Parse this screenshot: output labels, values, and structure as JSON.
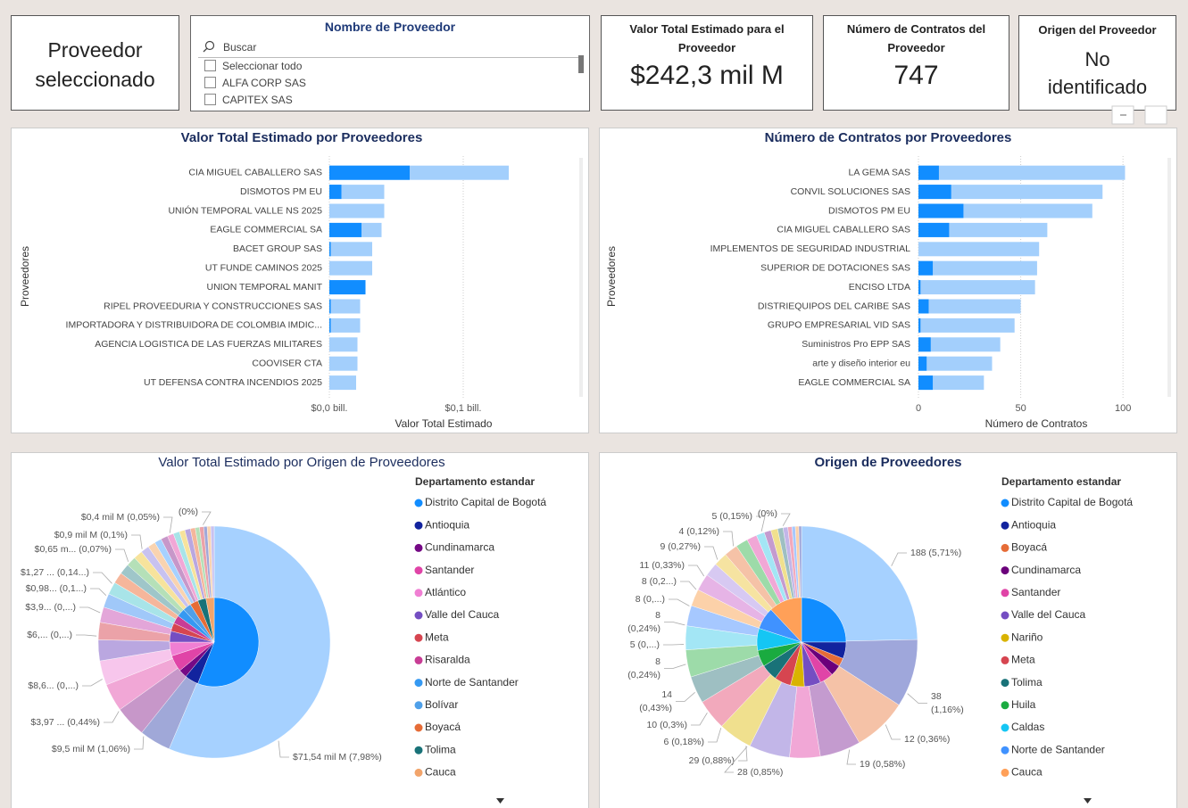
{
  "selected_card": "Proveedor seleccionado",
  "slicer": {
    "title": "Nombre de Proveedor",
    "search": "Buscar",
    "items": [
      "Seleccionar todo",
      "ALFA CORP SAS",
      "CAPITEX SAS"
    ]
  },
  "cards": [
    {
      "title": "Valor Total Estimado para el Proveedor",
      "value": "$242,3 mil M"
    },
    {
      "title": "Número de Contratos del Proveedor",
      "value": 747
    },
    {
      "title": "Origen del Proveedor",
      "value": "No identificado"
    }
  ],
  "chart_data": [
    {
      "type": "bar",
      "title": "Valor Total Estimado por Proveedores",
      "x_label": "Valor Total Estimado",
      "y_label": "Proveedores",
      "categories": [
        "CIA MIGUEL CABALLERO SAS",
        "DISMOTOS PM EU",
        "UNIÓN TEMPORAL VALLE NS 2025",
        "EAGLE COMMERCIAL SA",
        "BACET GROUP SAS",
        "UT FUNDE CAMINOS 2025",
        "UNION TEMPORAL MANIT",
        "RIPEL PROVEEDURIA Y CONSTRUCCIONES SAS",
        "IMPORTADORA Y DISTRIBUIDORA DE COLOMBIA IMDIC...",
        "AGENCIA LOGISTICA DE LAS FUERZAS MILITARES",
        "COOVISER CTA",
        "UT DEFENSA CONTRA INCENDIOS 2025"
      ],
      "series": [
        {
          "color": "#A3CFFC",
          "values": [
            0.134,
            0.041,
            0.041,
            0.039,
            0.032,
            0.032,
            0.027,
            0.023,
            0.023,
            0.021,
            0.021,
            0.02
          ]
        },
        {
          "color": "#118DFF",
          "values": [
            0.06,
            0.009,
            0,
            0.024,
            0.001,
            0,
            0.027,
            0.001,
            0.001,
            0,
            0,
            0
          ]
        }
      ],
      "xlim": [
        0,
        0.18
      ],
      "xticks": [
        {
          "value": 0,
          "label": "$0,0 bill."
        },
        {
          "value": 0.1,
          "label": "$0,1 bill."
        }
      ],
      "grid": true
    },
    {
      "type": "bar",
      "title": "Número de Contratos por Proveedores",
      "x_label": "Número de Contratos",
      "y_label": "Proveedores",
      "categories": [
        "LA GEMA SAS",
        "CONVIL SOLUCIONES SAS",
        "DISMOTOS PM EU",
        "CIA MIGUEL CABALLERO SAS",
        "IMPLEMENTOS DE SEGURIDAD INDUSTRIAL",
        "SUPERIOR DE DOTACIONES SAS",
        "ENCISO LTDA",
        "DISTRIEQUIPOS DEL CARIBE SAS",
        "GRUPO EMPRESARIAL VID SAS",
        "Suministros Pro EPP SAS",
        "arte y diseño interior eu",
        "EAGLE COMMERCIAL SA"
      ],
      "series": [
        {
          "color": "#A3CFFC",
          "values": [
            101,
            90,
            85,
            63,
            59,
            58,
            57,
            50,
            47,
            40,
            36,
            32
          ]
        },
        {
          "color": "#118DFF",
          "values": [
            10,
            16,
            22,
            15,
            0,
            7,
            1,
            5,
            1,
            6,
            4,
            7
          ]
        }
      ],
      "xlim": [
        0,
        120
      ],
      "xticks": [
        0,
        50,
        100
      ],
      "grid": true
    },
    {
      "type": "pie",
      "title": "Valor Total Estimado por Origen de Proveedores",
      "legend_title": "Departamento estandar",
      "categories": [
        "Distrito Capital de Bogotá",
        "Antioquia",
        "Cundinamarca",
        "Santander",
        "Atlántico",
        "Valle del Cauca",
        "Meta",
        "Risaralda",
        "Norte de Santander",
        "Bolívar",
        "Boyacá",
        "Tolima",
        "Cauca"
      ],
      "values": [
        56,
        5,
        3,
        6,
        5,
        4,
        3,
        3,
        3,
        3,
        3,
        3,
        3
      ],
      "colors": [
        "#118DFF",
        "#12239E",
        "#750985",
        "#E044A7",
        "#F07FD3",
        "#744EC2",
        "#D64550",
        "#C83D95",
        "#3599F2",
        "#4FA0E9",
        "#E66C37",
        "#197278",
        "#F2A46B"
      ],
      "ring": {
        "values": [
          58,
          4.5,
          4.5,
          4,
          3.5,
          3,
          2.5,
          2.2,
          2,
          1.8,
          1.6,
          1.5,
          1.4,
          1.3,
          1.2,
          1.1,
          1,
          1,
          0.9,
          0.9,
          0.8,
          0.8,
          0.7,
          0.6,
          0.6,
          0.5,
          0.5,
          0.5
        ],
        "colors": [
          "#A6D1FF",
          "#A0A8D8",
          "#C797C9",
          "#F1A7D6",
          "#F7C6EC",
          "#BAA7E0",
          "#EBA2A8",
          "#E3A6D9",
          "#A0C8F9",
          "#A8E4E8",
          "#F5B69B",
          "#9FC6C9",
          "#B5E0B8",
          "#F7E39C",
          "#C8C2F0",
          "#F9D3B0",
          "#A6D1FF",
          "#C797C9",
          "#F1A7D6",
          "#A8E4E8",
          "#F7E39C",
          "#BAA7E0",
          "#F5B69B",
          "#B5E0B8",
          "#EBA2A8",
          "#A0A8D8",
          "#F9D3B0",
          "#C8C2F0"
        ]
      },
      "labels": [
        [
          "$0,4 mil M (0,05%)"
        ],
        [
          "(0%)"
        ],
        [
          "$0,9 mil M (0,1%)"
        ],
        [
          "$0,65 m... (0,07%)"
        ],
        [
          "$1,27 ... (0,14...)"
        ],
        [
          "$0,98... (0,1...)"
        ],
        [
          "$3,9... (0,...)"
        ],
        [
          "$6,... (0,...)"
        ],
        [
          "$8,6... (0,...)"
        ],
        [
          "$3,97 ... (0,44%)"
        ],
        [
          "$9,5 mil M (1,06%)"
        ],
        [
          "$71,54 mil M (7,98%)"
        ]
      ]
    },
    {
      "type": "pie",
      "title": "Origen de Proveedores",
      "legend_title": "Departamento estandar",
      "categories": [
        "Distrito Capital de Bogotá",
        "Antioquia",
        "Boyacá",
        "Cundinamarca",
        "Santander",
        "Valle del Cauca",
        "Nariño",
        "Meta",
        "Tolima",
        "Huila",
        "Caldas",
        "Norte de Santander",
        "Cauca"
      ],
      "values": [
        25,
        6,
        3,
        4,
        5,
        6,
        5,
        6,
        6,
        6,
        8,
        8,
        12
      ],
      "colors": [
        "#118DFF",
        "#12239E",
        "#E66C37",
        "#6B007B",
        "#E044A7",
        "#744EC2",
        "#D9B300",
        "#D64550",
        "#197278",
        "#1AAB40",
        "#15C6F4",
        "#4092FF",
        "#FFA058"
      ],
      "ring": {
        "values": [
          26,
          10,
          8,
          6,
          4.5,
          6,
          5,
          4.5,
          4,
          4,
          3.5,
          3,
          2.5,
          2.5,
          2,
          2,
          2,
          1.8,
          1.5,
          1.2,
          1,
          1,
          0.8,
          0.7,
          0.6,
          0.5,
          0.5,
          0.4
        ],
        "colors": [
          "#A6D1FF",
          "#9FA7DB",
          "#F5C2A7",
          "#C49BCF",
          "#F1A7D6",
          "#C2B6E8",
          "#F0E08E",
          "#F2A9BC",
          "#9EBFC2",
          "#9DDBA9",
          "#A3E6F5",
          "#A6C8FF",
          "#FCD1A9",
          "#E6B4E6",
          "#D7C9F2",
          "#F6E3A1",
          "#F5C2A7",
          "#9DDBA9",
          "#F1A7D6",
          "#A3E6F5",
          "#C49BCF",
          "#F0E08E",
          "#9EBFC2",
          "#C2B6E8",
          "#F2A9BC",
          "#A6C8FF",
          "#FCD1A9",
          "#9FA7DB"
        ]
      },
      "labels": [
        [
          "5 (0,15%)"
        ],
        [
          "(0%)"
        ],
        [
          "4 (0,12%)"
        ],
        [
          "9 (0,27%)"
        ],
        [
          "11 (0,33%)"
        ],
        [
          "8 (0,2...)"
        ],
        [
          "8 (0,...)"
        ],
        [
          "8",
          "(0,24%)"
        ],
        [
          "5 (0,...)"
        ],
        [
          "8",
          "(0,24%)"
        ],
        [
          "14",
          "(0,43%)"
        ],
        [
          "10 (0,3%)"
        ],
        [
          "6 (0,18%)"
        ],
        [
          "29 (0,88%)"
        ],
        [
          "28 (0,85%)"
        ],
        [
          "19 (0,58%)"
        ],
        [
          "12 (0,36%)"
        ],
        [
          "38",
          "(1,16%)"
        ],
        [
          "188 (5,71%)"
        ]
      ]
    }
  ]
}
